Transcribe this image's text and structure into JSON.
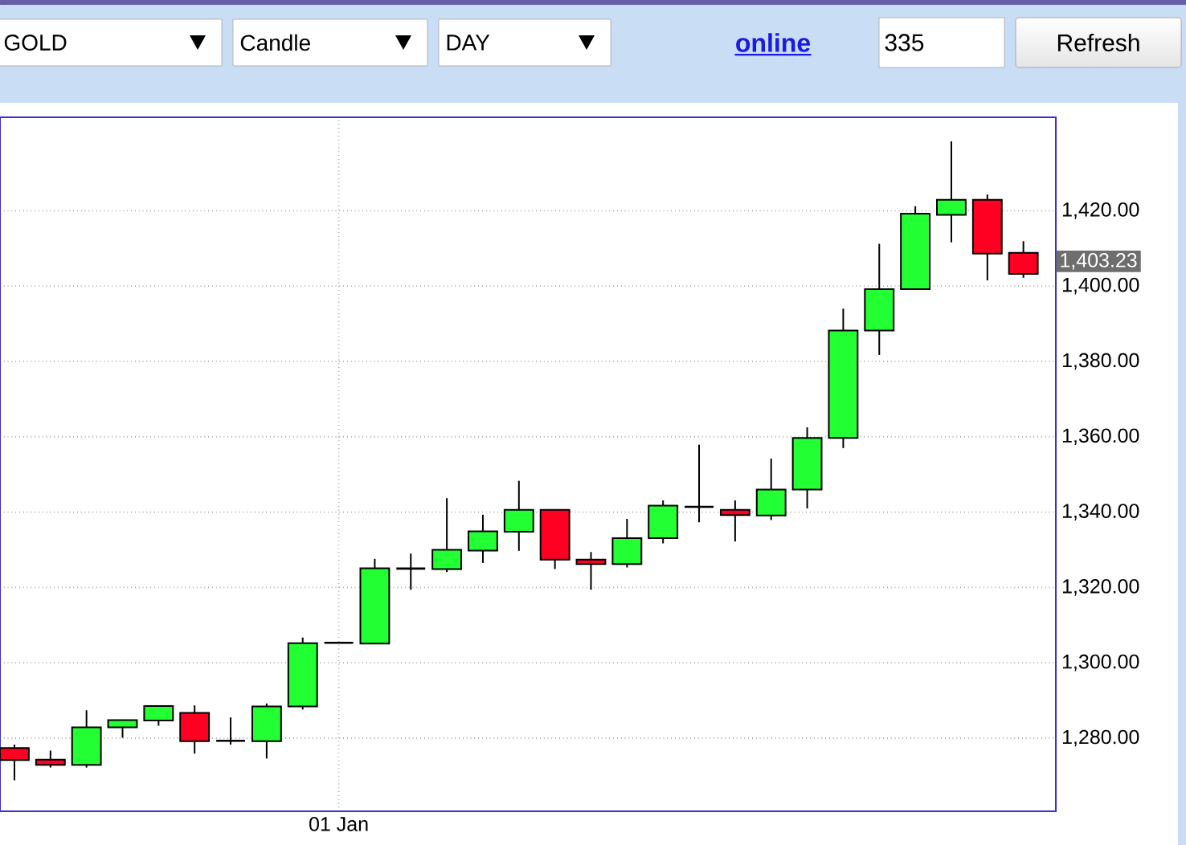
{
  "chart_data": {
    "type": "candlestick",
    "categories": [
      null,
      null,
      null,
      null,
      null,
      null,
      null,
      null,
      null,
      "01 Jan",
      null,
      null,
      null,
      null,
      null,
      null,
      null,
      null,
      null,
      null,
      null,
      null,
      null,
      null,
      null,
      null,
      null,
      null,
      null
    ],
    "ohlc": [
      [
        1277.4,
        1278.3,
        1268.8,
        1274.2
      ],
      [
        1274.3,
        1276.7,
        1272.2,
        1272.9
      ],
      [
        1272.9,
        1287.4,
        1272.2,
        1282.9
      ],
      [
        1282.9,
        1284.8,
        1280.1,
        1284.8
      ],
      [
        1284.7,
        1288.5,
        1283.3,
        1288.5
      ],
      [
        1286.7,
        1288.7,
        1275.9,
        1279.2
      ],
      [
        1279.3,
        1285.5,
        1278.3,
        1279.3
      ],
      [
        1279.2,
        1289.2,
        1274.6,
        1288.4
      ],
      [
        1288.4,
        1306.7,
        1287.6,
        1305.2
      ],
      [
        1305.3,
        1305.3,
        1305.3,
        1305.3
      ],
      [
        1305.1,
        1327.6,
        1305.1,
        1325.1
      ],
      [
        1325.0,
        1329.0,
        1319.4,
        1325.0
      ],
      [
        1324.9,
        1343.7,
        1324.1,
        1330.0
      ],
      [
        1329.8,
        1339.3,
        1326.5,
        1334.9
      ],
      [
        1334.8,
        1348.3,
        1329.7,
        1340.6
      ],
      [
        1340.6,
        1340.6,
        1324.9,
        1327.4
      ],
      [
        1327.4,
        1329.4,
        1319.4,
        1326.2
      ],
      [
        1326.2,
        1338.2,
        1325.3,
        1333.1
      ],
      [
        1333.1,
        1343.1,
        1331.7,
        1341.7
      ],
      [
        1341.4,
        1357.9,
        1337.3,
        1341.4
      ],
      [
        1340.6,
        1343.1,
        1332.2,
        1339.2
      ],
      [
        1339.1,
        1354.2,
        1337.9,
        1346.0
      ],
      [
        1346.0,
        1362.5,
        1341.0,
        1359.7
      ],
      [
        1359.7,
        1394.0,
        1357.0,
        1388.2
      ],
      [
        1388.2,
        1411.2,
        1381.7,
        1399.2
      ],
      [
        1399.2,
        1421.2,
        1399.2,
        1419.2
      ],
      [
        1418.9,
        1438.4,
        1411.6,
        1422.9
      ],
      [
        1422.9,
        1424.3,
        1401.5,
        1408.6
      ],
      [
        1408.8,
        1411.9,
        1402.2,
        1403.2
      ]
    ],
    "colors": [
      "#ff0022",
      "#ff0022",
      "#22ff33",
      "#22ff33",
      "#22ff33",
      "#ff0022",
      "#000000",
      "#22ff33",
      "#22ff33",
      "#000000",
      "#22ff33",
      "#000000",
      "#22ff33",
      "#22ff33",
      "#22ff33",
      "#ff0022",
      "#ff0022",
      "#22ff33",
      "#22ff33",
      "#000000",
      "#ff0022",
      "#22ff33",
      "#22ff33",
      "#22ff33",
      "#22ff33",
      "#22ff33",
      "#22ff33",
      "#ff0022",
      "#ff0022"
    ],
    "ylim": [
      1260.6,
      1444.8
    ],
    "yticks": [
      {
        "value": 1280,
        "label": "1,280.00"
      },
      {
        "value": 1300,
        "label": "1,300.00"
      },
      {
        "value": 1320,
        "label": "1,320.00"
      },
      {
        "value": 1340,
        "label": "1,340.00"
      },
      {
        "value": 1360,
        "label": "1,360.00"
      },
      {
        "value": 1380,
        "label": "1,380.00"
      },
      {
        "value": 1400,
        "label": "1,400.00"
      },
      {
        "value": 1420,
        "label": "1,420.00"
      }
    ],
    "grid": true,
    "annotations": [
      "GOLD",
      "Candle",
      "DAY",
      "online",
      "335",
      "Refresh",
      "1,403.23"
    ]
  }
}
